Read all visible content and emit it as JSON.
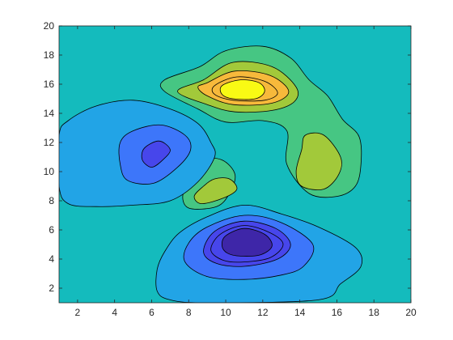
{
  "chart_data": {
    "type": "filled-contour",
    "title": "",
    "xlabel": "",
    "ylabel": "",
    "xlim": [
      1,
      20
    ],
    "ylim": [
      1,
      20
    ],
    "x_ticks": [
      2,
      4,
      6,
      8,
      10,
      12,
      14,
      16,
      18,
      20
    ],
    "y_ticks": [
      2,
      4,
      6,
      8,
      10,
      12,
      14,
      16,
      18,
      20
    ],
    "grid": false,
    "colormap": "parula",
    "level_colors": [
      "#3e26a8",
      "#4746eb",
      "#3d76fa",
      "#22a4e6",
      "#14bbbd",
      "#46c683",
      "#a2c93a",
      "#f7b93b",
      "#f9fa14"
    ],
    "background_color": "#14bbbd",
    "line_color": "#000000",
    "features": [
      {
        "kind": "peak",
        "center": [
          10.8,
          15.5
        ],
        "contours": [
          {
            "level_color": "#46c683",
            "points": [
              [
                8.6,
                17.2
              ],
              [
                10,
                18.3
              ],
              [
                12,
                18.6
              ],
              [
                13.5,
                17.8
              ],
              [
                14.5,
                16.3
              ],
              [
                15.5,
                15.2
              ],
              [
                16.3,
                13.6
              ],
              [
                17.2,
                12.4
              ],
              [
                17.3,
                10.5
              ],
              [
                17,
                9
              ],
              [
                16,
                8.3
              ],
              [
                14.5,
                8.5
              ],
              [
                13.3,
                10.5
              ],
              [
                13.3,
                12.8
              ],
              [
                12,
                13.5
              ],
              [
                10,
                13.4
              ],
              [
                8.5,
                14.3
              ],
              [
                6.7,
                15.5
              ],
              [
                6.7,
                16.3
              ]
            ]
          },
          {
            "level_color": "#a2c93a",
            "points": [
              [
                8.8,
                16.3
              ],
              [
                10.4,
                17.5
              ],
              [
                12.5,
                17.2
              ],
              [
                13.8,
                15.8
              ],
              [
                13.7,
                14.8
              ],
              [
                12.5,
                14.2
              ],
              [
                10.5,
                14.1
              ],
              [
                9,
                14.6
              ],
              [
                7.4,
                15.5
              ]
            ]
          },
          {
            "level_color": "#f7b93b",
            "points": [
              [
                9,
                16.1
              ],
              [
                10.5,
                16.9
              ],
              [
                12.4,
                16.6
              ],
              [
                13.4,
                15.5
              ],
              [
                12.5,
                14.7
              ],
              [
                10.4,
                14.6
              ],
              [
                9,
                15.2
              ],
              [
                8.5,
                15.8
              ]
            ]
          },
          {
            "level_color": "#f7b93b",
            "points": [
              [
                9.4,
                15.9
              ],
              [
                10.6,
                16.5
              ],
              [
                12.1,
                16.2
              ],
              [
                12.8,
                15.4
              ],
              [
                12.1,
                14.9
              ],
              [
                10.4,
                14.9
              ],
              [
                9.4,
                15.3
              ]
            ]
          },
          {
            "level_color": "#f9fa14",
            "points": [
              [
                9.8,
                15.9
              ],
              [
                10.8,
                16.3
              ],
              [
                11.8,
                16.1
              ],
              [
                12.1,
                15.5
              ],
              [
                11.6,
                15
              ],
              [
                10.4,
                15
              ],
              [
                9.8,
                15.3
              ]
            ]
          }
        ]
      },
      {
        "kind": "peak",
        "center": [
          14.8,
          11.0
        ],
        "contours": [
          {
            "level_color": "#a2c93a",
            "points": [
              [
                14.3,
                12.5
              ],
              [
                15.3,
                12.5
              ],
              [
                16.2,
                11
              ],
              [
                16.1,
                9.8
              ],
              [
                15.3,
                8.8
              ],
              [
                14.1,
                9
              ],
              [
                13.8,
                10
              ],
              [
                14.1,
                11.5
              ]
            ]
          }
        ]
      },
      {
        "kind": "peak",
        "center": [
          9.5,
          8.5
        ],
        "contours": [
          {
            "level_color": "#46c683",
            "points": [
              [
                8.7,
                10.8
              ],
              [
                9.8,
                10.8
              ],
              [
                10.5,
                9.8
              ],
              [
                10.2,
                8.5
              ],
              [
                9.5,
                7.6
              ],
              [
                8,
                7.5
              ],
              [
                7.7,
                8.5
              ],
              [
                8.4,
                9.6
              ]
            ]
          },
          {
            "level_color": "#a2c93a",
            "points": [
              [
                9.4,
                9.5
              ],
              [
                10.2,
                9.5
              ],
              [
                10.6,
                8.8
              ],
              [
                9.9,
                8.2
              ],
              [
                8.7,
                7.8
              ],
              [
                8.3,
                8.3
              ],
              [
                8.8,
                9
              ]
            ]
          }
        ]
      },
      {
        "kind": "trough",
        "center": [
          6.0,
          11.2
        ],
        "contours": [
          {
            "level_color": "#22a4e6",
            "points": [
              [
                3,
                14.5
              ],
              [
                5,
                14.9
              ],
              [
                7,
                14.3
              ],
              [
                8.5,
                13.3
              ],
              [
                9.2,
                12
              ],
              [
                9.4,
                11
              ],
              [
                8.5,
                9.3
              ],
              [
                7,
                8
              ],
              [
                5,
                7.7
              ],
              [
                3,
                7.6
              ],
              [
                1.5,
                7.8
              ],
              [
                1,
                9
              ],
              [
                1,
                12.5
              ],
              [
                1.5,
                13.5
              ]
            ]
          },
          {
            "level_color": "#3d76fa",
            "points": [
              [
                5,
                12.8
              ],
              [
                6.5,
                13.2
              ],
              [
                7.8,
                12.5
              ],
              [
                8.1,
                11.5
              ],
              [
                7.4,
                10.3
              ],
              [
                6.1,
                9.2
              ],
              [
                4.7,
                9.4
              ],
              [
                4.3,
                10.5
              ],
              [
                4.3,
                12
              ]
            ]
          },
          {
            "level_color": "#4746eb",
            "points": [
              [
                5.6,
                11.6
              ],
              [
                6.4,
                12.1
              ],
              [
                7,
                11.5
              ],
              [
                6.6,
                10.8
              ],
              [
                6,
                10.3
              ],
              [
                5.5,
                10.8
              ]
            ]
          }
        ]
      },
      {
        "kind": "trough",
        "center": [
          11.0,
          5.0
        ],
        "contours": [
          {
            "level_color": "#22a4e6",
            "points": [
              [
                7.5,
                5.8
              ],
              [
                9,
                6.9
              ],
              [
                11,
                7.7
              ],
              [
                13,
                7.1
              ],
              [
                15,
                6.2
              ],
              [
                17,
                4.8
              ],
              [
                17.3,
                3.5
              ],
              [
                16.2,
                2.3
              ],
              [
                15,
                1.2
              ],
              [
                9,
                1
              ],
              [
                7,
                1.2
              ],
              [
                6.3,
                1.8
              ],
              [
                6.3,
                3.3
              ],
              [
                6.7,
                4.5
              ]
            ]
          },
          {
            "level_color": "#3d76fa",
            "points": [
              [
                9,
                6.2
              ],
              [
                11,
                7
              ],
              [
                13,
                6.5
              ],
              [
                14.7,
                5
              ],
              [
                14.2,
                3.5
              ],
              [
                13,
                2.9
              ],
              [
                11,
                2.6
              ],
              [
                9,
                2.8
              ],
              [
                7.8,
                3.8
              ],
              [
                8,
                5.1
              ]
            ]
          },
          {
            "level_color": "#4746eb",
            "points": [
              [
                9.4,
                5.9
              ],
              [
                11,
                6.6
              ],
              [
                12.7,
                6.1
              ],
              [
                13.5,
                5
              ],
              [
                12.8,
                4
              ],
              [
                11,
                3.5
              ],
              [
                9.5,
                3.7
              ],
              [
                8.8,
                4.5
              ]
            ]
          },
          {
            "level_color": "#4746eb",
            "points": [
              [
                9.7,
                5.7
              ],
              [
                11,
                6.3
              ],
              [
                12.4,
                5.8
              ],
              [
                13.1,
                5
              ],
              [
                12.4,
                4.1
              ],
              [
                11,
                3.8
              ],
              [
                9.9,
                3.9
              ],
              [
                9.2,
                4.6
              ]
            ]
          },
          {
            "level_color": "#3e26a8",
            "points": [
              [
                10,
                5.6
              ],
              [
                11,
                6.1
              ],
              [
                12.1,
                5.7
              ],
              [
                12.5,
                4.9
              ],
              [
                11.9,
                4.3
              ],
              [
                10.8,
                4.2
              ],
              [
                10.1,
                4.4
              ],
              [
                9.8,
                4.9
              ]
            ]
          }
        ]
      }
    ]
  }
}
